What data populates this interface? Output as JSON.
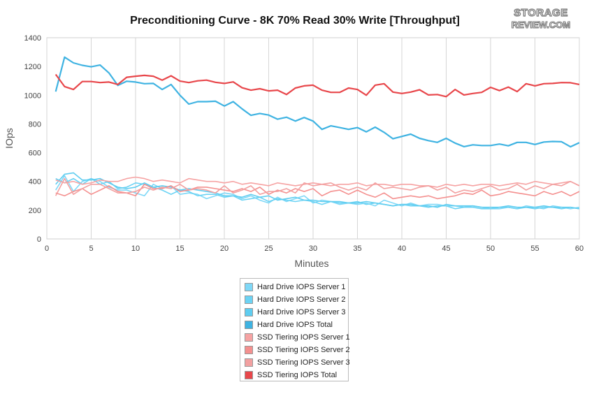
{
  "logo": {
    "line1": "STORAGE",
    "line2": "REVIEW.COM"
  },
  "chart_data": {
    "type": "line",
    "title": "Preconditioning Curve - 8K 70% Read 30% Write [Throughput]",
    "xlabel": "Minutes",
    "ylabel": "IOps",
    "xlim": [
      0,
      60
    ],
    "ylim": [
      0,
      1400
    ],
    "x_ticks": [
      0,
      5,
      10,
      15,
      20,
      25,
      30,
      35,
      40,
      45,
      50,
      55,
      60
    ],
    "y_ticks": [
      0,
      200,
      400,
      600,
      800,
      1000,
      1200,
      1400
    ],
    "grid": "vertical",
    "legend_position": "bottom-center",
    "x": [
      1,
      2,
      3,
      4,
      5,
      6,
      7,
      8,
      9,
      10,
      11,
      12,
      13,
      14,
      15,
      16,
      17,
      18,
      19,
      20,
      21,
      22,
      23,
      24,
      25,
      26,
      27,
      28,
      29,
      30,
      31,
      32,
      33,
      34,
      35,
      36,
      37,
      38,
      39,
      40,
      41,
      42,
      43,
      44,
      45,
      46,
      47,
      48,
      49,
      50,
      51,
      52,
      53,
      54,
      55,
      56,
      57,
      58,
      59,
      60
    ],
    "series": [
      {
        "name": "Hard Drive IOPS Server 1",
        "color": "#7fd8f7",
        "values": [
          340,
          440,
          330,
          400,
          420,
          400,
          360,
          340,
          340,
          320,
          300,
          380,
          350,
          370,
          310,
          320,
          310,
          280,
          300,
          320,
          310,
          280,
          300,
          270,
          250,
          290,
          260,
          280,
          300,
          250,
          270,
          260,
          240,
          250,
          240,
          250,
          230,
          270,
          250,
          230,
          250,
          230,
          240,
          240,
          230,
          230,
          220,
          230,
          220,
          210,
          210,
          220,
          210,
          230,
          220,
          210,
          230,
          220,
          210,
          220
        ]
      },
      {
        "name": "Hard Drive IOPS Server 2",
        "color": "#6cd3f4",
        "values": [
          420,
          390,
          420,
          380,
          420,
          380,
          400,
          350,
          360,
          390,
          380,
          360,
          340,
          310,
          340,
          330,
          300,
          310,
          310,
          290,
          300,
          270,
          280,
          290,
          260,
          280,
          270,
          260,
          270,
          260,
          240,
          260,
          250,
          250,
          260,
          240,
          250,
          240,
          230,
          240,
          230,
          230,
          220,
          230,
          230,
          210,
          220,
          220,
          210,
          210,
          220,
          220,
          210,
          220,
          210,
          220,
          220,
          210,
          220,
          210
        ]
      },
      {
        "name": "Hard Drive IOPS Server 3",
        "color": "#5fcdf0",
        "values": [
          380,
          450,
          460,
          410,
          410,
          420,
          390,
          360,
          350,
          360,
          390,
          360,
          370,
          360,
          340,
          350,
          340,
          330,
          320,
          300,
          300,
          290,
          310,
          290,
          300,
          270,
          280,
          290,
          270,
          270,
          260,
          260,
          260,
          250,
          250,
          260,
          250,
          240,
          230,
          240,
          240,
          230,
          230,
          220,
          240,
          230,
          230,
          230,
          220,
          220,
          220,
          230,
          220,
          220,
          220,
          230,
          220,
          220,
          220,
          210
        ]
      },
      {
        "name": "Hard Drive IOPS Total",
        "color": "#3fb3e2",
        "values": [
          1025,
          1265,
          1225,
          1208,
          1198,
          1210,
          1155,
          1068,
          1097,
          1092,
          1080,
          1082,
          1040,
          1075,
          1000,
          938,
          955,
          955,
          958,
          925,
          955,
          905,
          860,
          873,
          862,
          833,
          847,
          820,
          845,
          820,
          762,
          787,
          775,
          762,
          775,
          745,
          778,
          742,
          697,
          713,
          729,
          700,
          684,
          672,
          700,
          667,
          642,
          655,
          650,
          650,
          660,
          648,
          672,
          672,
          657,
          674,
          678,
          676,
          641,
          670
        ]
      },
      {
        "name": "SSD Tiering IOPS Server 1",
        "color": "#f6a3a3",
        "values": [
          410,
          390,
          400,
          380,
          390,
          410,
          400,
          400,
          420,
          430,
          420,
          400,
          410,
          400,
          390,
          420,
          410,
          400,
          400,
          390,
          400,
          380,
          390,
          380,
          370,
          390,
          380,
          370,
          380,
          390,
          380,
          370,
          380,
          380,
          390,
          370,
          380,
          380,
          370,
          380,
          380,
          370,
          370,
          360,
          380,
          370,
          380,
          370,
          380,
          380,
          370,
          380,
          390,
          380,
          400,
          390,
          380,
          390,
          400,
          370
        ]
      },
      {
        "name": "SSD Tiering IOPS Server 2",
        "color": "#f4908f",
        "values": [
          320,
          300,
          330,
          350,
          310,
          340,
          370,
          330,
          320,
          300,
          380,
          350,
          350,
          370,
          330,
          340,
          360,
          360,
          350,
          340,
          330,
          350,
          330,
          360,
          310,
          340,
          320,
          350,
          330,
          350,
          300,
          330,
          340,
          310,
          340,
          310,
          290,
          320,
          280,
          290,
          300,
          290,
          300,
          280,
          290,
          300,
          320,
          310,
          340,
          300,
          310,
          330,
          320,
          310,
          300,
          330,
          310,
          330,
          300,
          330
        ]
      },
      {
        "name": "SSD Tiering IOPS Server 3",
        "color": "#f2a0a0",
        "values": [
          300,
          420,
          310,
          350,
          380,
          380,
          350,
          320,
          320,
          330,
          360,
          340,
          360,
          350,
          380,
          340,
          350,
          340,
          320,
          370,
          320,
          340,
          370,
          310,
          330,
          330,
          350,
          320,
          390,
          370,
          380,
          390,
          360,
          340,
          360,
          340,
          390,
          350,
          360,
          350,
          340,
          360,
          370,
          340,
          360,
          320,
          340,
          330,
          350,
          370,
          340,
          350,
          380,
          340,
          370,
          350,
          380,
          370,
          400,
          370
        ]
      },
      {
        "name": "SSD Tiering IOPS Total",
        "color": "#e8474b",
        "values": [
          1145,
          1060,
          1040,
          1095,
          1095,
          1088,
          1092,
          1075,
          1125,
          1132,
          1138,
          1132,
          1105,
          1135,
          1098,
          1088,
          1100,
          1105,
          1090,
          1082,
          1093,
          1052,
          1035,
          1045,
          1030,
          1035,
          1005,
          1050,
          1065,
          1070,
          1035,
          1020,
          1020,
          1050,
          1040,
          1000,
          1070,
          1080,
          1022,
          1012,
          1022,
          1038,
          1002,
          1005,
          990,
          1040,
          1002,
          1012,
          1020,
          1055,
          1032,
          1057,
          1025,
          1080,
          1065,
          1080,
          1082,
          1088,
          1087,
          1075
        ]
      }
    ]
  }
}
